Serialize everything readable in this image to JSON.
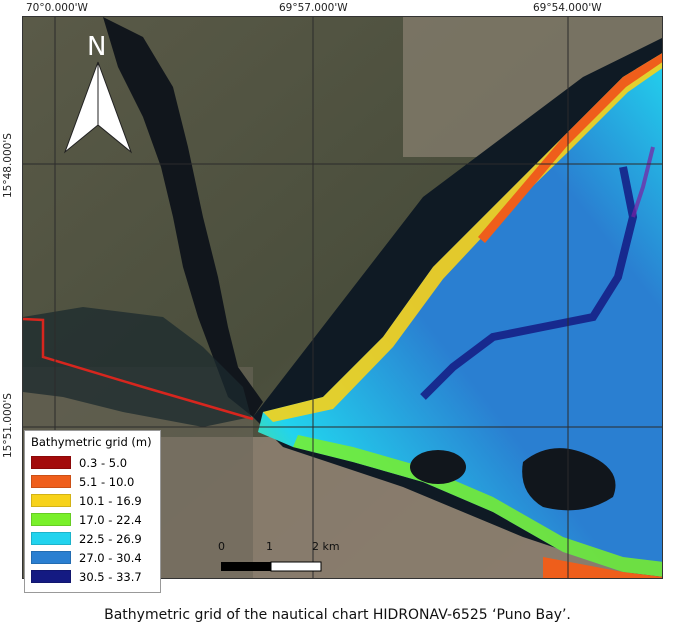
{
  "coordinates": {
    "top": [
      "70°0.000'W",
      "69°57.000'W",
      "69°54.000'W"
    ],
    "left": [
      "15°48.000'S",
      "15°51.000'S"
    ]
  },
  "north_arrow": {
    "label": "N",
    "icon": "north-arrow-icon"
  },
  "legend": {
    "title": "Bathymetric grid (m)",
    "items": [
      {
        "label": "0.3 - 5.0",
        "color": "#a30b0b"
      },
      {
        "label": "5.1 - 10.0",
        "color": "#ef5e1b"
      },
      {
        "label": "10.1 - 16.9",
        "color": "#f7d21a"
      },
      {
        "label": "17.0 - 22.4",
        "color": "#79f02a"
      },
      {
        "label": "22.5 - 26.9",
        "color": "#22d3ee"
      },
      {
        "label": "27.0 - 30.4",
        "color": "#2a7fd1"
      },
      {
        "label": "30.5 - 33.7",
        "color": "#141a82"
      }
    ]
  },
  "scale_bar": {
    "labels": [
      "0",
      "1",
      "2 km"
    ]
  },
  "caption": "Bathymetric grid of the nautical chart HIDRONAV-6525 ‘Puno Bay’."
}
